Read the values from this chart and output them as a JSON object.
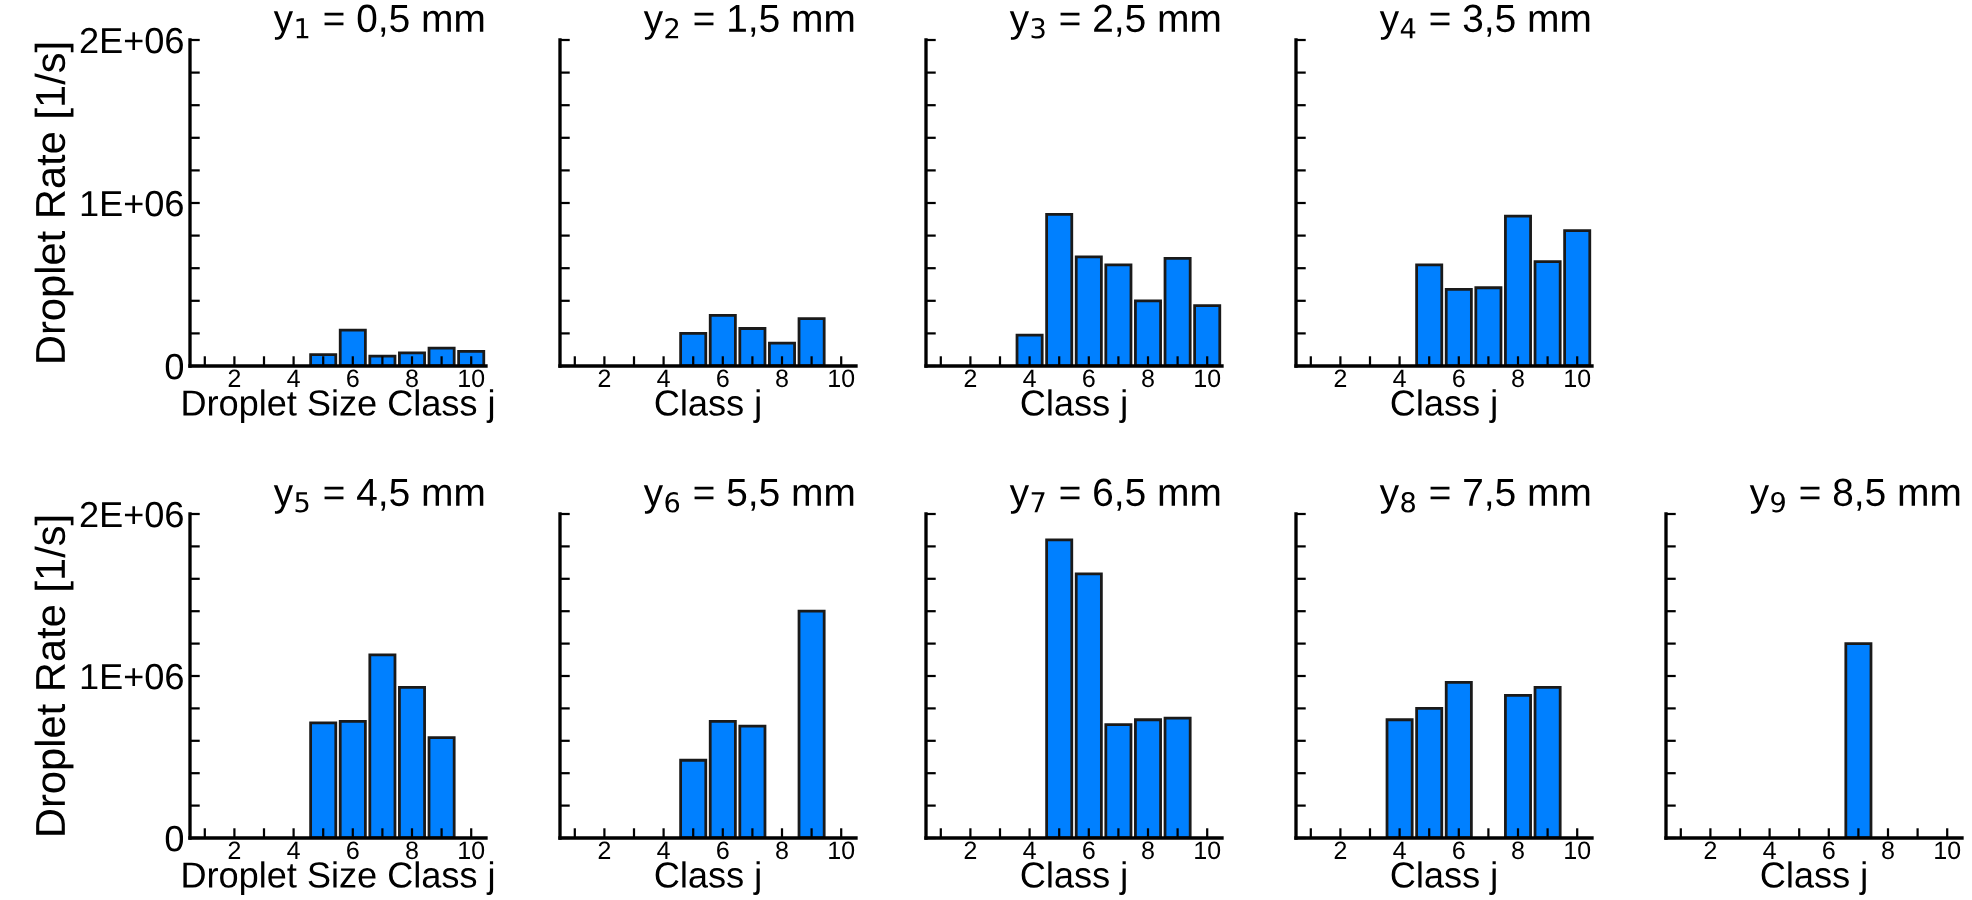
{
  "chart_data": [
    {
      "type": "bar",
      "title": "y$_{1}$ = 0,5 mm",
      "xlabel": "Droplet Size Class j",
      "ylabel": "Droplet Rate [1/s]",
      "x": [
        1,
        2,
        3,
        4,
        5,
        6,
        7,
        8,
        9,
        10
      ],
      "values": [
        0,
        0,
        0,
        0,
        70000,
        220000,
        60000,
        80000,
        110000,
        90000
      ],
      "color": "#0080ff",
      "xlim": [
        0.5,
        10.5
      ],
      "xticks": [
        {
          "value": 1,
          "label": null
        },
        2,
        {
          "value": 3,
          "label": null
        },
        4,
        {
          "value": 5,
          "label": null
        },
        6,
        {
          "value": 7,
          "label": null
        },
        8,
        {
          "value": 9,
          "label": null
        },
        10
      ],
      "ylim": [
        0,
        2000000
      ],
      "yticks": [
        0,
        {
          "value": 200000,
          "label": null
        },
        {
          "value": 400000,
          "label": null
        },
        {
          "value": 600000,
          "label": null
        },
        {
          "value": 800000,
          "label": null
        },
        {
          "value": 1000000,
          "label": "1E+06"
        },
        {
          "value": 1200000,
          "label": null
        },
        {
          "value": 1400000,
          "label": null
        },
        {
          "value": 1600000,
          "label": null
        },
        {
          "value": 1800000,
          "label": null
        },
        {
          "value": 2000000,
          "label": "2E+06"
        }
      ]
    },
    {
      "type": "bar",
      "title": "y$_{2}$ = 1,5 mm",
      "xlabel": "Class j",
      "x": [
        1,
        2,
        3,
        4,
        5,
        6,
        7,
        8,
        9,
        10
      ],
      "values": [
        0,
        0,
        0,
        0,
        200000,
        310000,
        230000,
        140000,
        290000,
        0
      ],
      "color": "#0080ff",
      "xlim": [
        0.5,
        10.5
      ],
      "xticks": [
        {
          "value": 1,
          "label": null
        },
        2,
        {
          "value": 3,
          "label": null
        },
        4,
        {
          "value": 5,
          "label": null
        },
        6,
        {
          "value": 7,
          "label": null
        },
        8,
        {
          "value": 9,
          "label": null
        },
        10
      ],
      "ylim": [
        0,
        2000000
      ],
      "yticks": [
        {
          "value": 0,
          "label": null
        },
        {
          "value": 200000,
          "label": null
        },
        {
          "value": 400000,
          "label": null
        },
        {
          "value": 600000,
          "label": null
        },
        {
          "value": 800000,
          "label": null
        },
        {
          "value": 1000000,
          "label": null
        },
        {
          "value": 1200000,
          "label": null
        },
        {
          "value": 1400000,
          "label": null
        },
        {
          "value": 1600000,
          "label": null
        },
        {
          "value": 1800000,
          "label": null
        },
        {
          "value": 2000000,
          "label": null
        }
      ],
      "tick_labels": "x"
    },
    {
      "type": "bar",
      "title": "y$_{3}$ = 2,5 mm",
      "xlabel": "Class j",
      "x": [
        1,
        2,
        3,
        4,
        5,
        6,
        7,
        8,
        9,
        10
      ],
      "values": [
        0,
        0,
        0,
        190000,
        930000,
        670000,
        620000,
        400000,
        660000,
        370000
      ],
      "color": "#0080ff",
      "xlim": [
        0.5,
        10.5
      ],
      "xticks": [
        {
          "value": 1,
          "label": null
        },
        2,
        {
          "value": 3,
          "label": null
        },
        4,
        {
          "value": 5,
          "label": null
        },
        6,
        {
          "value": 7,
          "label": null
        },
        8,
        {
          "value": 9,
          "label": null
        },
        10
      ],
      "ylim": [
        0,
        2000000
      ],
      "yticks": [
        {
          "value": 0,
          "label": null
        },
        {
          "value": 200000,
          "label": null
        },
        {
          "value": 400000,
          "label": null
        },
        {
          "value": 600000,
          "label": null
        },
        {
          "value": 800000,
          "label": null
        },
        {
          "value": 1000000,
          "label": null
        },
        {
          "value": 1200000,
          "label": null
        },
        {
          "value": 1400000,
          "label": null
        },
        {
          "value": 1600000,
          "label": null
        },
        {
          "value": 1800000,
          "label": null
        },
        {
          "value": 2000000,
          "label": null
        }
      ],
      "tick_labels": "x"
    },
    {
      "type": "bar",
      "title": "y$_{4}$ = 3,5 mm",
      "xlabel": "Class j",
      "x": [
        1,
        2,
        3,
        4,
        5,
        6,
        7,
        8,
        9,
        10
      ],
      "values": [
        0,
        0,
        0,
        0,
        620000,
        470000,
        480000,
        920000,
        640000,
        830000
      ],
      "color": "#0080ff",
      "xlim": [
        0.5,
        10.5
      ],
      "xticks": [
        {
          "value": 1,
          "label": null
        },
        2,
        {
          "value": 3,
          "label": null
        },
        4,
        {
          "value": 5,
          "label": null
        },
        6,
        {
          "value": 7,
          "label": null
        },
        8,
        {
          "value": 9,
          "label": null
        },
        10
      ],
      "ylim": [
        0,
        2000000
      ],
      "yticks": [
        {
          "value": 0,
          "label": null
        },
        {
          "value": 200000,
          "label": null
        },
        {
          "value": 400000,
          "label": null
        },
        {
          "value": 600000,
          "label": null
        },
        {
          "value": 800000,
          "label": null
        },
        {
          "value": 1000000,
          "label": null
        },
        {
          "value": 1200000,
          "label": null
        },
        {
          "value": 1400000,
          "label": null
        },
        {
          "value": 1600000,
          "label": null
        },
        {
          "value": 1800000,
          "label": null
        },
        {
          "value": 2000000,
          "label": null
        }
      ],
      "tick_labels": "x"
    },
    {
      "type": "bar",
      "title": "y$_{5}$ = 4,5 mm",
      "xlabel": "Droplet Size Class j",
      "ylabel": "Droplet Rate [1/s]",
      "x": [
        1,
        2,
        3,
        4,
        5,
        6,
        7,
        8,
        9,
        10
      ],
      "values": [
        0,
        0,
        0,
        0,
        710000,
        720000,
        1130000,
        930000,
        620000,
        0
      ],
      "color": "#0080ff",
      "xlim": [
        0.5,
        10.5
      ],
      "xticks": [
        {
          "value": 1,
          "label": null
        },
        2,
        {
          "value": 3,
          "label": null
        },
        4,
        {
          "value": 5,
          "label": null
        },
        6,
        {
          "value": 7,
          "label": null
        },
        8,
        {
          "value": 9,
          "label": null
        },
        10
      ],
      "ylim": [
        0,
        2000000
      ],
      "yticks": [
        0,
        {
          "value": 200000,
          "label": null
        },
        {
          "value": 400000,
          "label": null
        },
        {
          "value": 600000,
          "label": null
        },
        {
          "value": 800000,
          "label": null
        },
        {
          "value": 1000000,
          "label": "1E+06"
        },
        {
          "value": 1200000,
          "label": null
        },
        {
          "value": 1400000,
          "label": null
        },
        {
          "value": 1600000,
          "label": null
        },
        {
          "value": 1800000,
          "label": null
        },
        {
          "value": 2000000,
          "label": "2E+06"
        }
      ]
    },
    {
      "type": "bar",
      "title": "y$_{6}$ = 5,5 mm",
      "xlabel": "Class j",
      "x": [
        1,
        2,
        3,
        4,
        5,
        6,
        7,
        8,
        9,
        10
      ],
      "values": [
        0,
        0,
        0,
        0,
        480000,
        720000,
        690000,
        0,
        1400000,
        0
      ],
      "color": "#0080ff",
      "xlim": [
        0.5,
        10.5
      ],
      "xticks": [
        {
          "value": 1,
          "label": null
        },
        2,
        {
          "value": 3,
          "label": null
        },
        4,
        {
          "value": 5,
          "label": null
        },
        6,
        {
          "value": 7,
          "label": null
        },
        8,
        {
          "value": 9,
          "label": null
        },
        10
      ],
      "ylim": [
        0,
        2000000
      ],
      "yticks": [
        {
          "value": 0,
          "label": null
        },
        {
          "value": 200000,
          "label": null
        },
        {
          "value": 400000,
          "label": null
        },
        {
          "value": 600000,
          "label": null
        },
        {
          "value": 800000,
          "label": null
        },
        {
          "value": 1000000,
          "label": null
        },
        {
          "value": 1200000,
          "label": null
        },
        {
          "value": 1400000,
          "label": null
        },
        {
          "value": 1600000,
          "label": null
        },
        {
          "value": 1800000,
          "label": null
        },
        {
          "value": 2000000,
          "label": null
        }
      ],
      "tick_labels": "x"
    },
    {
      "type": "bar",
      "title": "y$_{7}$ = 6,5 mm",
      "xlabel": "Class j",
      "x": [
        1,
        2,
        3,
        4,
        5,
        6,
        7,
        8,
        9,
        10
      ],
      "values": [
        0,
        0,
        0,
        0,
        1840000,
        1630000,
        700000,
        730000,
        740000,
        0
      ],
      "color": "#0080ff",
      "xlim": [
        0.5,
        10.5
      ],
      "xticks": [
        {
          "value": 1,
          "label": null
        },
        2,
        {
          "value": 3,
          "label": null
        },
        4,
        {
          "value": 5,
          "label": null
        },
        6,
        {
          "value": 7,
          "label": null
        },
        8,
        {
          "value": 9,
          "label": null
        },
        10
      ],
      "ylim": [
        0,
        2000000
      ],
      "yticks": [
        {
          "value": 0,
          "label": null
        },
        {
          "value": 200000,
          "label": null
        },
        {
          "value": 400000,
          "label": null
        },
        {
          "value": 600000,
          "label": null
        },
        {
          "value": 800000,
          "label": null
        },
        {
          "value": 1000000,
          "label": null
        },
        {
          "value": 1200000,
          "label": null
        },
        {
          "value": 1400000,
          "label": null
        },
        {
          "value": 1600000,
          "label": null
        },
        {
          "value": 1800000,
          "label": null
        },
        {
          "value": 2000000,
          "label": null
        }
      ],
      "tick_labels": "x"
    },
    {
      "type": "bar",
      "title": "y$_{8}$ = 7,5 mm",
      "xlabel": "Class j",
      "x": [
        1,
        2,
        3,
        4,
        5,
        6,
        7,
        8,
        9,
        10
      ],
      "values": [
        0,
        0,
        0,
        730000,
        800000,
        960000,
        0,
        880000,
        930000,
        0
      ],
      "color": "#0080ff",
      "xlim": [
        0.5,
        10.5
      ],
      "xticks": [
        {
          "value": 1,
          "label": null
        },
        2,
        {
          "value": 3,
          "label": null
        },
        4,
        {
          "value": 5,
          "label": null
        },
        6,
        {
          "value": 7,
          "label": null
        },
        8,
        {
          "value": 9,
          "label": null
        },
        10
      ],
      "ylim": [
        0,
        2000000
      ],
      "yticks": [
        {
          "value": 0,
          "label": null
        },
        {
          "value": 200000,
          "label": null
        },
        {
          "value": 400000,
          "label": null
        },
        {
          "value": 600000,
          "label": null
        },
        {
          "value": 800000,
          "label": null
        },
        {
          "value": 1000000,
          "label": null
        },
        {
          "value": 1200000,
          "label": null
        },
        {
          "value": 1400000,
          "label": null
        },
        {
          "value": 1600000,
          "label": null
        },
        {
          "value": 1800000,
          "label": null
        },
        {
          "value": 2000000,
          "label": null
        }
      ],
      "tick_labels": "x"
    },
    {
      "type": "bar",
      "title": "y$_{9}$ = 8,5 mm",
      "xlabel": "Class j",
      "x": [
        1,
        2,
        3,
        4,
        5,
        6,
        7,
        8,
        9,
        10
      ],
      "values": [
        0,
        0,
        0,
        0,
        0,
        0,
        1200000,
        0,
        0,
        0
      ],
      "color": "#0080ff",
      "xlim": [
        0.5,
        10.5
      ],
      "xticks": [
        {
          "value": 1,
          "label": null
        },
        2,
        {
          "value": 3,
          "label": null
        },
        4,
        {
          "value": 5,
          "label": null
        },
        6,
        {
          "value": 7,
          "label": null
        },
        8,
        {
          "value": 9,
          "label": null
        },
        10
      ],
      "ylim": [
        0,
        2000000
      ],
      "yticks": [
        {
          "value": 0,
          "label": null
        },
        {
          "value": 200000,
          "label": null
        },
        {
          "value": 400000,
          "label": null
        },
        {
          "value": 600000,
          "label": null
        },
        {
          "value": 800000,
          "label": null
        },
        {
          "value": 1000000,
          "label": null
        },
        {
          "value": 1200000,
          "label": null
        },
        {
          "value": 1400000,
          "label": null
        },
        {
          "value": 1600000,
          "label": null
        },
        {
          "value": 1800000,
          "label": null
        },
        {
          "value": 2000000,
          "label": null
        }
      ],
      "tick_labels": "x"
    }
  ]
}
